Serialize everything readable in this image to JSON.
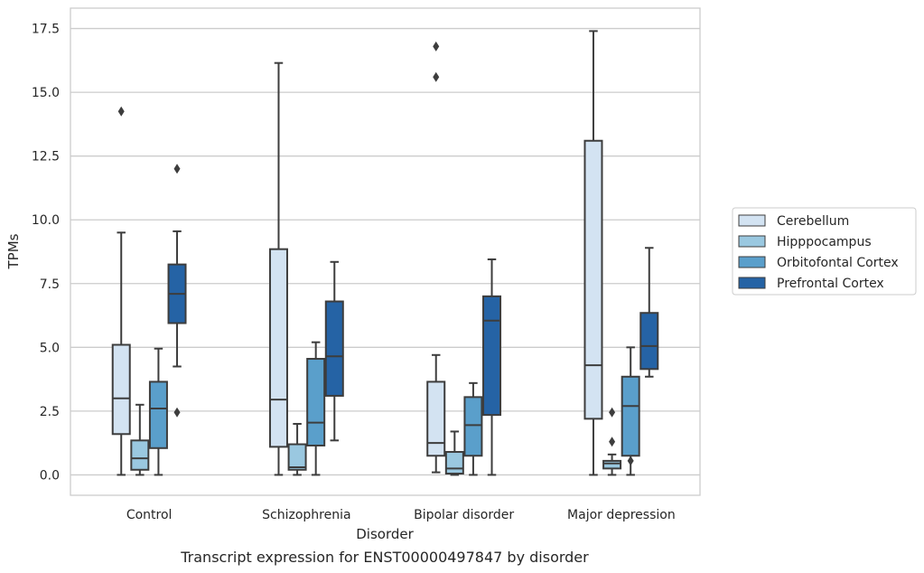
{
  "chart_data": {
    "type": "boxplot",
    "caption": "Transcript expression for ENST00000497847 by disorder",
    "xlabel": "Disorder",
    "ylabel": "TPMs",
    "ylim": [
      -0.8,
      18.3
    ],
    "yticks": [
      "0.0",
      "2.5",
      "5.0",
      "7.5",
      "10.0",
      "12.5",
      "15.0",
      "17.5"
    ],
    "ytick_values": [
      0,
      2.5,
      5,
      7.5,
      10,
      12.5,
      15,
      17.5
    ],
    "grid": "horizontal",
    "legend_position": "right",
    "categories": [
      "Control",
      "Schizophrenia",
      "Bipolar disorder",
      "Major depression"
    ],
    "series": [
      {
        "name": "Cerebellum",
        "color": "#d3e3f2",
        "boxes": [
          {
            "whisker_low": 0.0,
            "q1": 1.6,
            "median": 3.0,
            "q3": 5.1,
            "whisker_high": 9.5,
            "outliers": [
              14.25
            ]
          },
          {
            "whisker_low": 0.0,
            "q1": 1.1,
            "median": 2.95,
            "q3": 8.85,
            "whisker_high": 16.15,
            "outliers": []
          },
          {
            "whisker_low": 0.1,
            "q1": 0.75,
            "median": 1.25,
            "q3": 3.65,
            "whisker_high": 4.7,
            "outliers": [
              15.6,
              16.8
            ]
          },
          {
            "whisker_low": 0.0,
            "q1": 2.2,
            "median": 4.3,
            "q3": 13.1,
            "whisker_high": 17.4,
            "outliers": []
          }
        ]
      },
      {
        "name": "Hipppocampus",
        "color": "#9ac8e0",
        "boxes": [
          {
            "whisker_low": 0.0,
            "q1": 0.2,
            "median": 0.65,
            "q3": 1.35,
            "whisker_high": 2.75,
            "outliers": []
          },
          {
            "whisker_low": 0.0,
            "q1": 0.2,
            "median": 0.3,
            "q3": 1.2,
            "whisker_high": 2.0,
            "outliers": []
          },
          {
            "whisker_low": 0.0,
            "q1": 0.05,
            "median": 0.25,
            "q3": 0.9,
            "whisker_high": 1.7,
            "outliers": []
          },
          {
            "whisker_low": 0.0,
            "q1": 0.25,
            "median": 0.45,
            "q3": 0.55,
            "whisker_high": 0.8,
            "outliers": [
              1.3,
              2.45
            ]
          }
        ]
      },
      {
        "name": "Orbitofontal Cortex",
        "color": "#5a9fcb",
        "boxes": [
          {
            "whisker_low": 0.0,
            "q1": 1.05,
            "median": 2.6,
            "q3": 3.65,
            "whisker_high": 4.95,
            "outliers": []
          },
          {
            "whisker_low": 0.0,
            "q1": 1.15,
            "median": 2.05,
            "q3": 4.55,
            "whisker_high": 5.2,
            "outliers": []
          },
          {
            "whisker_low": 0.0,
            "q1": 0.75,
            "median": 1.95,
            "q3": 3.05,
            "whisker_high": 3.6,
            "outliers": []
          },
          {
            "whisker_low": 0.0,
            "q1": 0.75,
            "median": 2.7,
            "q3": 3.85,
            "whisker_high": 5.0,
            "outliers": [
              0.55
            ]
          }
        ]
      },
      {
        "name": "Prefrontal Cortex",
        "color": "#2563a5",
        "boxes": [
          {
            "whisker_low": 4.25,
            "q1": 5.95,
            "median": 7.1,
            "q3": 8.25,
            "whisker_high": 9.55,
            "outliers": [
              2.45,
              12.0
            ]
          },
          {
            "whisker_low": 1.35,
            "q1": 3.1,
            "median": 4.65,
            "q3": 6.8,
            "whisker_high": 8.35,
            "outliers": []
          },
          {
            "whisker_low": 0.0,
            "q1": 2.35,
            "median": 6.05,
            "q3": 7.0,
            "whisker_high": 8.45,
            "outliers": []
          },
          {
            "whisker_low": 3.85,
            "q1": 4.15,
            "median": 5.05,
            "q3": 6.35,
            "whisker_high": 8.9,
            "outliers": []
          }
        ]
      }
    ]
  }
}
